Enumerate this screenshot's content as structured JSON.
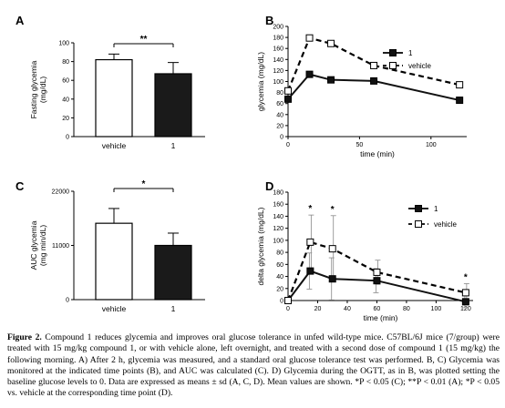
{
  "panels": {
    "A": {
      "label": "A"
    },
    "B": {
      "label": "B"
    },
    "C": {
      "label": "C"
    },
    "D": {
      "label": "D"
    }
  },
  "chart_data": [
    {
      "id": "A",
      "type": "bar",
      "categories": [
        "vehicle",
        "1"
      ],
      "values": [
        82,
        67
      ],
      "errors": [
        6,
        12
      ],
      "ylabel": "Fasting glycemia\n(mg/dL)",
      "ylim": [
        0,
        100
      ],
      "yticks": [
        0,
        20,
        40,
        60,
        80,
        100
      ],
      "fills": [
        "#ffffff",
        "#1a1a1a"
      ],
      "significance": "**"
    },
    {
      "id": "B",
      "type": "line",
      "x": [
        0,
        15,
        30,
        60,
        120
      ],
      "xlabel": "time (min)",
      "ylabel": "glycemia (mg/dL)",
      "xlim": [
        0,
        125
      ],
      "ylim": [
        0,
        200
      ],
      "xticks": [
        0,
        50,
        100
      ],
      "yticks": [
        0,
        20,
        40,
        60,
        80,
        100,
        120,
        140,
        160,
        180,
        200
      ],
      "series": [
        {
          "name": "1",
          "marker": "filled-square",
          "dashed": false,
          "values": [
            68,
            113,
            103,
            101,
            66
          ]
        },
        {
          "name": "vehicle",
          "marker": "open-square",
          "dashed": true,
          "values": [
            83,
            179,
            169,
            129,
            94
          ]
        }
      ],
      "legend": "top-right"
    },
    {
      "id": "C",
      "type": "bar",
      "categories": [
        "vehicle",
        "1"
      ],
      "values": [
        15500,
        11000
      ],
      "errors": [
        3000,
        2500
      ],
      "ylabel": "AUC glycemia\n(mg min/dL)",
      "ylim": [
        0,
        22000
      ],
      "yticks": [
        0,
        11000,
        22000
      ],
      "fills": [
        "#ffffff",
        "#1a1a1a"
      ],
      "significance": "*"
    },
    {
      "id": "D",
      "type": "line",
      "x": [
        0,
        15,
        30,
        60,
        120
      ],
      "xlabel": "time (min)",
      "ylabel": "delta glycemia (mg/dL)",
      "xlim": [
        0,
        125
      ],
      "ylim": [
        0,
        180
      ],
      "xticks": [
        0,
        20,
        40,
        60,
        80,
        100,
        120
      ],
      "yticks": [
        0,
        20,
        40,
        60,
        80,
        100,
        120,
        140,
        160,
        180
      ],
      "series": [
        {
          "name": "1",
          "marker": "filled-square",
          "dashed": false,
          "values": [
            0,
            49,
            36,
            33,
            -2
          ],
          "errors": [
            0,
            30,
            35,
            20,
            10
          ]
        },
        {
          "name": "vehicle",
          "marker": "open-square",
          "dashed": true,
          "values": [
            0,
            97,
            86,
            47,
            13
          ],
          "errors": [
            0,
            45,
            55,
            20,
            15
          ]
        }
      ],
      "significance_x": [
        15,
        30,
        120
      ],
      "significance_mark": "*",
      "legend": "top-right"
    }
  ],
  "caption": {
    "lead": "Figure 2.",
    "text": " Compound 1 reduces glycemia and improves oral glucose tolerance in unfed wild-type mice. C57BL/6J mice (7/group) were treated with 15 mg/kg compound 1, or with vehicle alone, left overnight, and treated with a second dose of compound 1 (15 mg/kg) the following morning. A) After 2 h, glycemia was measured, and a standard oral glucose tolerance test was performed. B, C) Glycemia was monitored at the indicated time points (B), and AUC was calculated (C). D) Glycemia during the OGTT, as in B, was plotted setting the baseline glucose levels to 0. Data are expressed as means ± sd (A, C, D). Mean values are shown. *P < 0.05 (C); **P < 0.01 (A); *P < 0.05 vs. vehicle at the corresponding time point (D)."
  }
}
